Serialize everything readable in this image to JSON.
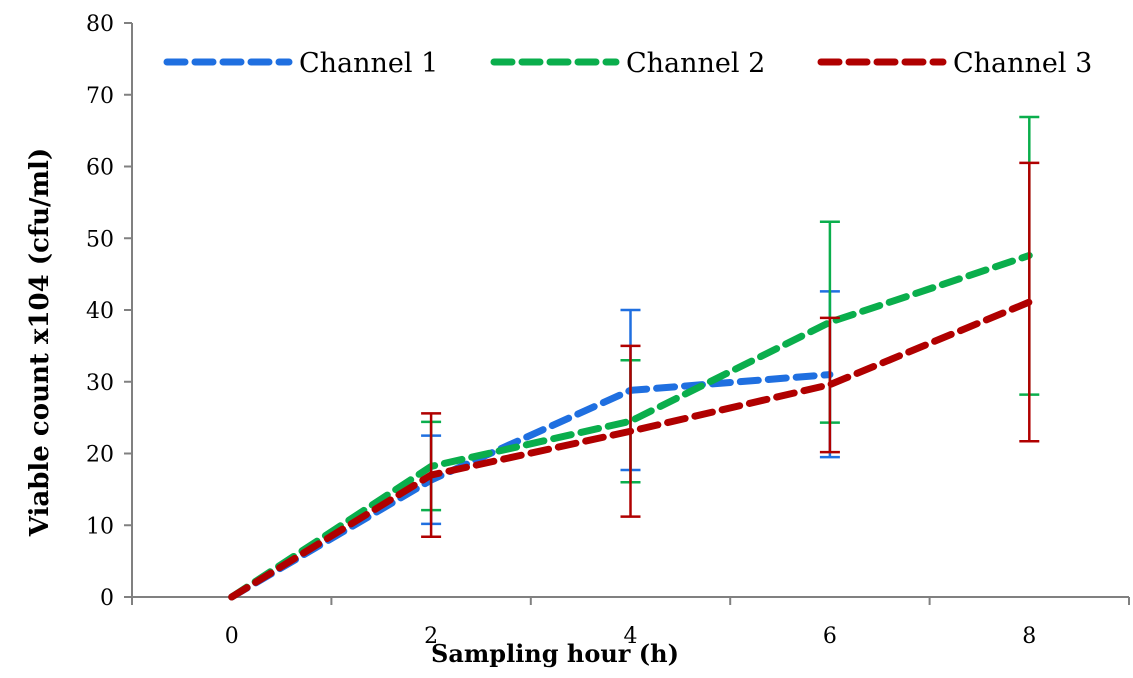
{
  "chart_data": {
    "type": "line",
    "title": "",
    "xlabel": "Sampling hour (h)",
    "ylabel": "Viable count x104 (cfu/ml)",
    "x_categories": [
      "0",
      "2",
      "4",
      "6",
      "8"
    ],
    "xlim": [
      0,
      8
    ],
    "ylim": [
      0,
      80
    ],
    "yticks": [
      0,
      10,
      20,
      30,
      40,
      50,
      60,
      70,
      80
    ],
    "yticks_labels": [
      "0",
      "10",
      "20",
      "30",
      "40",
      "50",
      "60",
      "70",
      "80"
    ],
    "grid": false,
    "legend_position": "top",
    "line_style": "dashed",
    "series": [
      {
        "name": "Channel 1",
        "color": "#1f6fe0",
        "x": [
          0,
          2,
          4,
          6
        ],
        "y": [
          0,
          16.3,
          28.8,
          31
        ],
        "error_low": [
          0,
          10.2,
          17.7,
          19.5
        ],
        "error_high": [
          0,
          22.5,
          40,
          42.6
        ]
      },
      {
        "name": "Channel 2",
        "color": "#0aae4c",
        "x": [
          0,
          2,
          4,
          6,
          8
        ],
        "y": [
          0,
          18.2,
          24.5,
          38.3,
          47.6
        ],
        "error_low": [
          0,
          12.1,
          16,
          24.3,
          28.2
        ],
        "error_high": [
          0,
          24.4,
          33,
          52.3,
          66.9
        ]
      },
      {
        "name": "Channel 3",
        "color": "#b00000",
        "x": [
          0,
          2,
          4,
          6,
          8
        ],
        "y": [
          0,
          17,
          23.1,
          29.6,
          41.1
        ],
        "error_low": [
          0,
          8.4,
          11.2,
          20.2,
          21.7
        ],
        "error_high": [
          0,
          25.6,
          35,
          38.9,
          60.5
        ]
      }
    ]
  }
}
